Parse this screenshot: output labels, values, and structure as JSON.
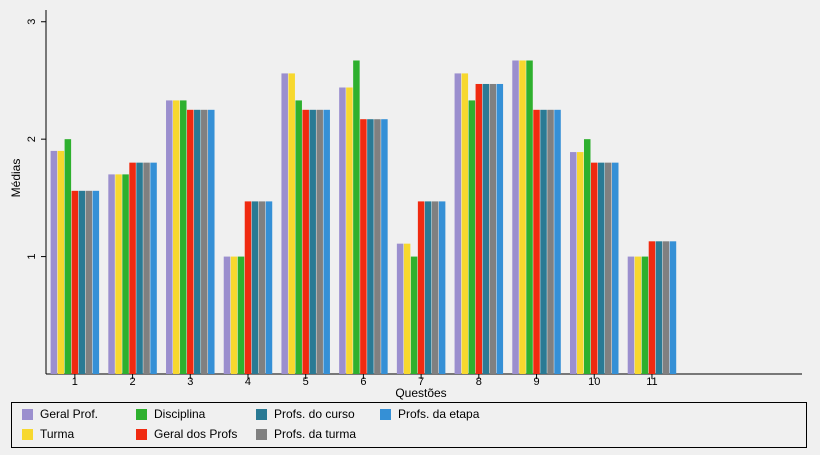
{
  "chart_data": {
    "type": "bar",
    "xlabel": "Questões",
    "ylabel": "Médias",
    "ylim": [
      0,
      3.1
    ],
    "yticks": [
      1,
      2,
      3
    ],
    "categories": [
      "1",
      "2",
      "3",
      "4",
      "5",
      "6",
      "7",
      "8",
      "9",
      "10",
      "11"
    ],
    "xlim": [
      0.5,
      13.6
    ],
    "grid": false,
    "legend_position": "bottom",
    "series": [
      {
        "name": "Geral Prof.",
        "color": "#9b8fce",
        "values": [
          1.9,
          1.7,
          2.33,
          1.0,
          2.56,
          2.44,
          1.11,
          2.56,
          2.67,
          1.89,
          1.0
        ]
      },
      {
        "name": "Turma",
        "color": "#f7d82e",
        "values": [
          1.9,
          1.7,
          2.33,
          1.0,
          2.56,
          2.44,
          1.11,
          2.56,
          2.67,
          1.89,
          1.0
        ]
      },
      {
        "name": "Disciplina",
        "color": "#2eb02e",
        "values": [
          2.0,
          1.7,
          2.33,
          1.0,
          2.33,
          2.67,
          1.0,
          2.33,
          2.67,
          2.0,
          1.0
        ]
      },
      {
        "name": "Geral dos Profs",
        "color": "#f02a10",
        "values": [
          1.56,
          1.8,
          2.25,
          1.47,
          2.25,
          2.17,
          1.47,
          2.47,
          2.25,
          1.8,
          1.13
        ]
      },
      {
        "name": "Profs. do curso",
        "color": "#2a7a94",
        "values": [
          1.56,
          1.8,
          2.25,
          1.47,
          2.25,
          2.17,
          1.47,
          2.47,
          2.25,
          1.8,
          1.13
        ]
      },
      {
        "name": "Profs. da turma",
        "color": "#808080",
        "values": [
          1.56,
          1.8,
          2.25,
          1.47,
          2.25,
          2.17,
          1.47,
          2.47,
          2.25,
          1.8,
          1.13
        ]
      },
      {
        "name": "Profs. da etapa",
        "color": "#3590d6",
        "values": [
          1.56,
          1.8,
          2.25,
          1.47,
          2.25,
          2.17,
          1.47,
          2.47,
          2.25,
          1.8,
          1.13
        ]
      }
    ]
  }
}
